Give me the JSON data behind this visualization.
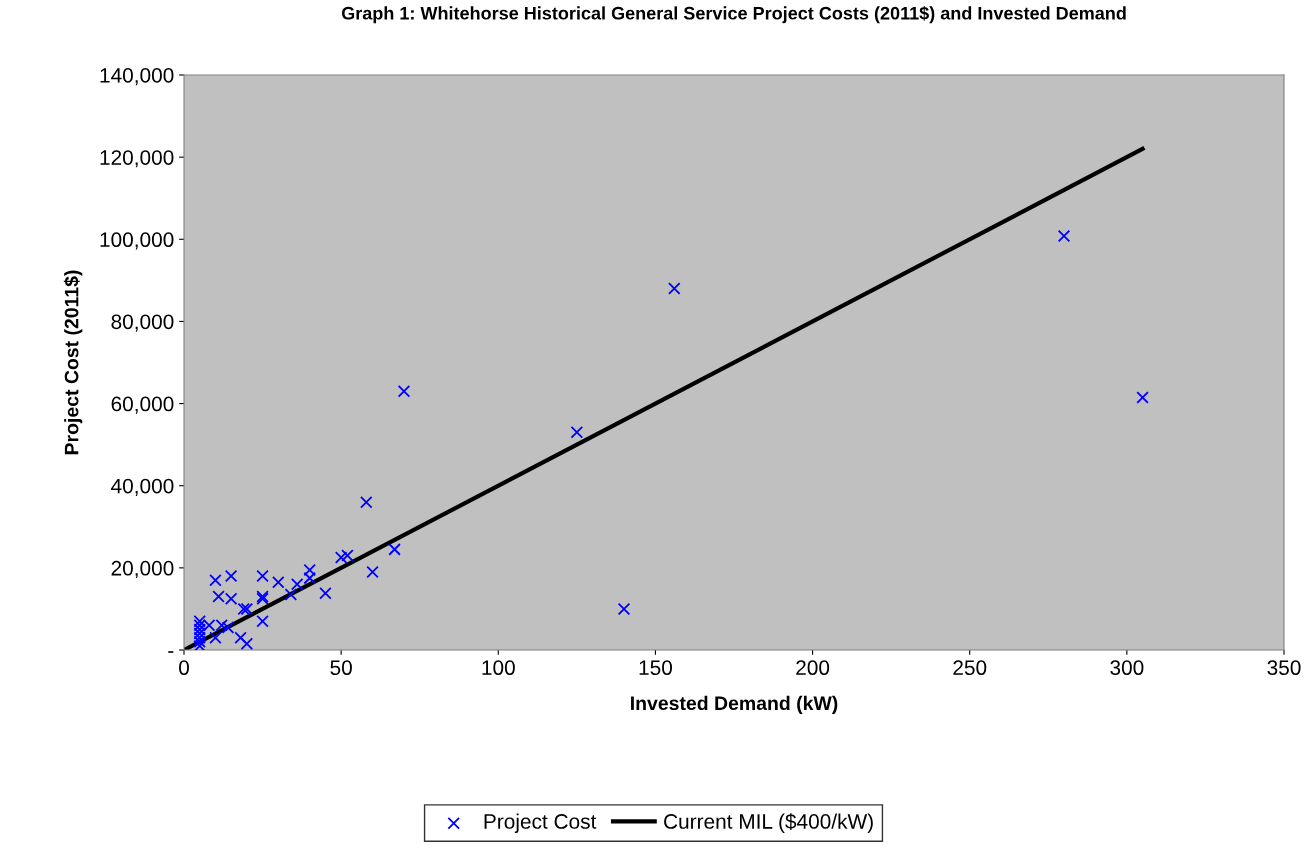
{
  "chart_data": {
    "type": "scatter",
    "title": "Graph 1: Whitehorse Historical General Service Project Costs (2011$) and Invested Demand",
    "xlabel": "Invested Demand (kW)",
    "ylabel": "Project Cost (2011$)",
    "xlim": [
      0,
      350
    ],
    "xticks": [
      0,
      50,
      100,
      150,
      200,
      250,
      300,
      350
    ],
    "ylim": [
      0,
      140000
    ],
    "yticks": [
      {
        "value": 0,
        "label": "-"
      },
      {
        "value": 20000,
        "label": "20,000"
      },
      {
        "value": 40000,
        "label": "40,000"
      },
      {
        "value": 60000,
        "label": "60,000"
      },
      {
        "value": 80000,
        "label": "80,000"
      },
      {
        "value": 100000,
        "label": "100,000"
      },
      {
        "value": 120000,
        "label": "120,000"
      },
      {
        "value": 140000,
        "label": "140,000"
      }
    ],
    "grid": false,
    "legend": "bottom",
    "marker": "cross",
    "series": [
      {
        "name": "Project Cost",
        "color": "#0000ff",
        "x": [
          5,
          5,
          5,
          5,
          5,
          5,
          5,
          6,
          8,
          10,
          11,
          10,
          12,
          14,
          15,
          15,
          18,
          19,
          20,
          20,
          25,
          25,
          25,
          25,
          30,
          34,
          36,
          40,
          40,
          45,
          50,
          52,
          58,
          60,
          67,
          70,
          125,
          140,
          156,
          280,
          305
        ],
        "values": [
          7000,
          6000,
          5000,
          4000,
          3000,
          2000,
          1000,
          null,
          6000,
          17000,
          13000,
          3000,
          6000,
          5500,
          18000,
          12500,
          3000,
          10000,
          10000,
          1500,
          18000,
          13000,
          12500,
          7000,
          16500,
          13500,
          16000,
          19500,
          17500,
          13800,
          22500,
          23000,
          36000,
          19000,
          24500,
          63000,
          53000,
          10000,
          88000,
          100800,
          61500
        ]
      },
      {
        "name": "Current MIL ($400/kW)",
        "type": "line",
        "color": "#000000",
        "x": [
          0,
          305
        ],
        "values": [
          0,
          122000
        ],
        "marker": "none",
        "line_style": "solid"
      }
    ]
  }
}
